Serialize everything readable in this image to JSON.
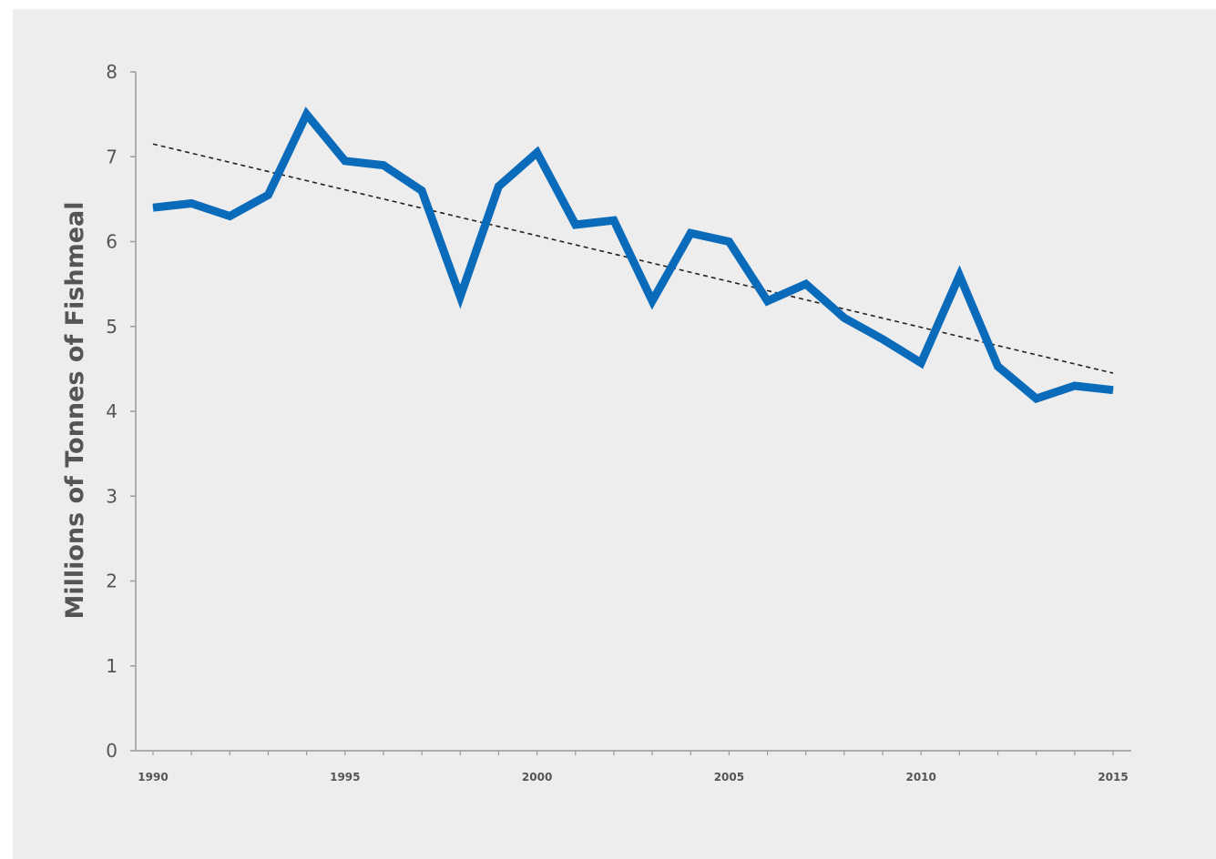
{
  "chart_data": {
    "type": "line",
    "ylabel": "Millions of Tonnes of Fishmeal",
    "xlabel": "",
    "title": "",
    "ylim": [
      0,
      8
    ],
    "xlim": [
      1990,
      2015
    ],
    "yticks": [
      0,
      1,
      2,
      3,
      4,
      5,
      6,
      7,
      8
    ],
    "xticks": [
      1990,
      1995,
      2000,
      2005,
      2010,
      2015
    ],
    "xtick_labels": [
      "1990",
      "1995",
      "2000",
      "2005",
      "2010",
      "2015"
    ],
    "grid": false,
    "x": [
      1990,
      1991,
      1992,
      1993,
      1994,
      1995,
      1996,
      1997,
      1998,
      1999,
      2000,
      2001,
      2002,
      2003,
      2004,
      2005,
      2006,
      2007,
      2008,
      2009,
      2010,
      2011,
      2012,
      2013,
      2014,
      2015
    ],
    "series": [
      {
        "values": [
          6.4,
          6.45,
          6.3,
          6.55,
          7.5,
          6.95,
          6.9,
          6.6,
          5.35,
          6.65,
          7.05,
          6.2,
          6.25,
          5.3,
          6.1,
          6.0,
          5.3,
          5.5,
          5.1,
          4.85,
          4.57,
          5.6,
          4.53,
          4.15,
          4.3,
          4.25
        ],
        "color": "#0a6bbb"
      }
    ],
    "trendline": {
      "style": "dashed",
      "color": "#222222",
      "x": [
        1990,
        2015
      ],
      "values": [
        7.15,
        4.45
      ]
    }
  }
}
